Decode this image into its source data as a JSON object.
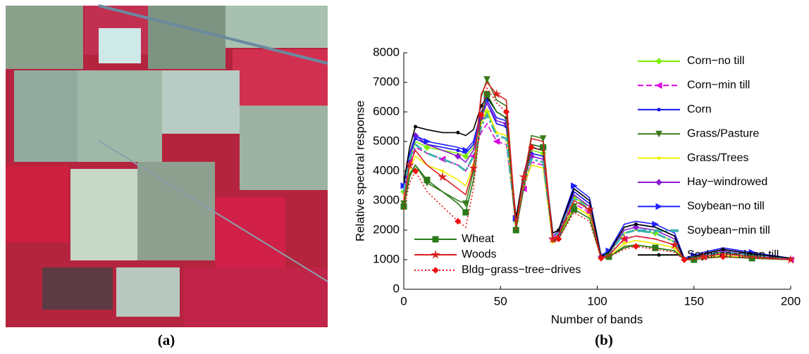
{
  "image_label": "(a)",
  "chart_data": {
    "type": "line",
    "label": "(b)",
    "x_label": "Number of bands",
    "y_label": "Relative spectral response",
    "x": [
      0,
      3,
      6,
      12,
      20,
      28,
      32,
      36,
      40,
      43,
      48,
      53,
      58,
      62,
      66,
      72,
      77,
      80,
      88,
      96,
      102,
      106,
      114,
      120,
      130,
      140,
      145,
      150,
      155,
      165,
      180,
      200
    ],
    "xlim": [
      0,
      200
    ],
    "xticks": [
      0,
      50,
      100,
      150,
      200
    ],
    "ylim": [
      0,
      8000
    ],
    "yticks": [
      0,
      1000,
      2000,
      3000,
      4000,
      5000,
      6000,
      7000,
      8000
    ],
    "series": [
      {
        "name": "Corn−no till",
        "color": "#7cf000",
        "style": "solid",
        "marker": "diamond",
        "values": [
          3300,
          4400,
          5000,
          4800,
          4700,
          4600,
          4500,
          4800,
          5600,
          6000,
          5300,
          5200,
          2300,
          3600,
          4700,
          4600,
          1800,
          1900,
          3100,
          2800,
          1100,
          1200,
          1900,
          2000,
          1900,
          1600,
          1000,
          1100,
          1150,
          1250,
          1150,
          1000
        ]
      },
      {
        "name": "Corn−min till",
        "color": "#e000e0",
        "style": "dashed",
        "marker": "triangle-left",
        "values": [
          3200,
          4300,
          4800,
          4600,
          4400,
          4200,
          4000,
          4500,
          5300,
          5600,
          5000,
          4900,
          2200,
          3400,
          4300,
          4200,
          1700,
          1800,
          2900,
          2600,
          1100,
          1150,
          1700,
          1800,
          1700,
          1500,
          1000,
          1050,
          1100,
          1200,
          1100,
          1000
        ]
      },
      {
        "name": "Corn",
        "color": "#1010ee",
        "style": "solid",
        "marker": "dot",
        "values": [
          3400,
          4500,
          5100,
          4900,
          4800,
          4700,
          4600,
          4900,
          5900,
          6300,
          5600,
          5500,
          2400,
          3800,
          4600,
          4500,
          1800,
          1950,
          3300,
          2900,
          1100,
          1250,
          2100,
          2200,
          2100,
          1800,
          1000,
          1100,
          1200,
          1350,
          1200,
          1050
        ]
      },
      {
        "name": "Grass/Pasture",
        "color": "#3a7a1a",
        "style": "solid",
        "marker": "triangle-down",
        "values": [
          2900,
          3900,
          4200,
          3600,
          3300,
          3000,
          2900,
          4000,
          6500,
          7100,
          6400,
          6200,
          2000,
          3700,
          5200,
          5100,
          1600,
          1800,
          2800,
          2500,
          1050,
          1100,
          1450,
          1500,
          1400,
          1300,
          1000,
          1000,
          1050,
          1100,
          1050,
          1000
        ]
      },
      {
        "name": "Grass/Trees",
        "color": "#f0f000",
        "style": "solid",
        "marker": "dot",
        "values": [
          3100,
          4100,
          4500,
          4200,
          4000,
          3700,
          3500,
          4200,
          5600,
          6100,
          5300,
          5200,
          2100,
          3500,
          4200,
          4100,
          1600,
          1700,
          2800,
          2500,
          1050,
          1100,
          1550,
          1650,
          1550,
          1400,
          1000,
          1000,
          1050,
          1150,
          1050,
          1000
        ]
      },
      {
        "name": "Hay−windrowed",
        "color": "#8a1ad0",
        "style": "solid",
        "marker": "diamond",
        "values": [
          3300,
          4500,
          5200,
          4900,
          4700,
          4500,
          4300,
          4700,
          5800,
          6300,
          5700,
          5600,
          2300,
          3700,
          4500,
          4400,
          1800,
          1900,
          3200,
          2800,
          1100,
          1200,
          2000,
          2100,
          2000,
          1700,
          1000,
          1100,
          1150,
          1300,
          1150,
          1000
        ]
      },
      {
        "name": "Soybean−no till",
        "color": "#2020ff",
        "style": "solid",
        "marker": "triangle-right",
        "values": [
          3500,
          4600,
          5200,
          5000,
          4900,
          4800,
          4700,
          5000,
          6000,
          6400,
          5800,
          5700,
          2400,
          3900,
          4900,
          4800,
          1900,
          2000,
          3500,
          3100,
          1150,
          1300,
          2200,
          2300,
          2200,
          1900,
          1050,
          1150,
          1250,
          1400,
          1250,
          1050
        ]
      },
      {
        "name": "Soybean−min till",
        "color": "#3fb0b0",
        "style": "dashdot",
        "marker": "none",
        "values": [
          3300,
          4400,
          4900,
          4600,
          4400,
          4200,
          4000,
          4500,
          5500,
          5900,
          5200,
          5100,
          2300,
          3600,
          4400,
          4300,
          1800,
          1900,
          3100,
          2700,
          1100,
          1200,
          1900,
          2000,
          1900,
          1600,
          1000,
          1100,
          1150,
          1250,
          1150,
          1000
        ]
      },
      {
        "name": "Soybean−clean till",
        "color": "#000000",
        "style": "solid",
        "marker": "dot",
        "values": [
          3600,
          4800,
          5500,
          5400,
          5300,
          5300,
          5200,
          5400,
          6200,
          6500,
          6000,
          5800,
          2400,
          3900,
          4800,
          4700,
          1900,
          2000,
          3400,
          3000,
          1100,
          1250,
          2100,
          2200,
          2100,
          1800,
          1000,
          1100,
          1200,
          1350,
          1200,
          1050
        ]
      },
      {
        "name": "Wheat",
        "color": "#2a7a1a",
        "style": "solid",
        "marker": "square",
        "values": [
          2800,
          3800,
          4200,
          3700,
          3300,
          2900,
          2600,
          3700,
          5800,
          6600,
          6000,
          5800,
          2000,
          3400,
          4900,
          4800,
          1600,
          1700,
          2700,
          2400,
          1050,
          1100,
          1400,
          1500,
          1400,
          1300,
          1000,
          1000,
          1050,
          1100,
          1050,
          1000
        ]
      },
      {
        "name": "Woods",
        "color": "#d82020",
        "style": "solid",
        "marker": "star",
        "values": [
          3000,
          4200,
          4700,
          4200,
          3800,
          3400,
          3200,
          4100,
          6600,
          7000,
          6600,
          6400,
          2200,
          3800,
          5100,
          5000,
          1700,
          1850,
          3000,
          2700,
          1050,
          1150,
          1700,
          1800,
          1700,
          1500,
          1000,
          1050,
          1100,
          1200,
          1100,
          1000
        ]
      },
      {
        "name": "Bldg−grass−tree−drives",
        "color": "#ee1010",
        "style": "dotted",
        "marker": "diamond",
        "values": [
          2700,
          3600,
          4000,
          3300,
          2800,
          2300,
          2100,
          3400,
          5900,
          6800,
          6300,
          6000,
          2000,
          3500,
          4800,
          4700,
          1600,
          1700,
          2600,
          2300,
          1050,
          1100,
          1350,
          1450,
          1350,
          1250,
          1000,
          1000,
          1050,
          1100,
          1050,
          1000
        ]
      }
    ]
  }
}
